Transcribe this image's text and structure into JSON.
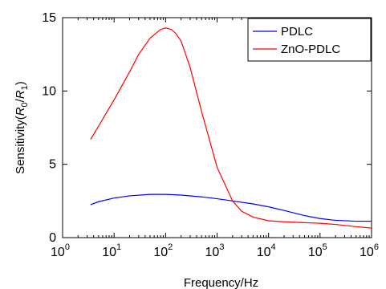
{
  "chart_data": {
    "type": "line",
    "xlabel": "Frequency/Hz",
    "ylabel": "Sensitivity(R0/R1)",
    "ylabel_parts": {
      "prefix": "Sensitivity(",
      "r0": "R",
      "r0_sub": "0",
      "slash": "/",
      "r1": "R",
      "r1_sub": "1",
      "suffix": ")"
    },
    "x_scale": "log",
    "xlim": [
      1,
      1000000
    ],
    "ylim": [
      0,
      15
    ],
    "x_ticks": [
      {
        "base": "10",
        "exp": "0",
        "value": 1
      },
      {
        "base": "10",
        "exp": "1",
        "value": 10
      },
      {
        "base": "10",
        "exp": "2",
        "value": 100
      },
      {
        "base": "10",
        "exp": "3",
        "value": 1000
      },
      {
        "base": "10",
        "exp": "4",
        "value": 10000
      },
      {
        "base": "10",
        "exp": "5",
        "value": 100000
      },
      {
        "base": "10",
        "exp": "6",
        "value": 1000000
      }
    ],
    "y_ticks": [
      {
        "label": "0",
        "value": 0
      },
      {
        "label": "5",
        "value": 5
      },
      {
        "label": "10",
        "value": 10
      },
      {
        "label": "15",
        "value": 15
      }
    ],
    "grid": false,
    "legend_position": "top-right",
    "series": [
      {
        "name": "PDLC",
        "color": "#0000ff",
        "x": [
          3.5,
          5,
          10,
          20,
          50,
          100,
          200,
          500,
          1000,
          2000,
          5000,
          10000,
          20000,
          50000,
          100000,
          200000,
          500000,
          1000000
        ],
        "y": [
          2.25,
          2.45,
          2.7,
          2.85,
          2.95,
          2.95,
          2.9,
          2.78,
          2.65,
          2.5,
          2.3,
          2.1,
          1.85,
          1.5,
          1.3,
          1.18,
          1.12,
          1.12
        ]
      },
      {
        "name": "ZnO-PDLC",
        "color": "#ff0000",
        "x": [
          3.5,
          5,
          10,
          20,
          30,
          50,
          80,
          100,
          130,
          160,
          200,
          300,
          500,
          1000,
          2000,
          3000,
          5000,
          10000,
          20000,
          50000,
          100000,
          200000,
          500000,
          1000000
        ],
        "y": [
          6.7,
          7.6,
          9.4,
          11.3,
          12.5,
          13.6,
          14.2,
          14.3,
          14.2,
          13.9,
          13.4,
          11.6,
          8.6,
          4.8,
          2.5,
          1.8,
          1.4,
          1.15,
          1.08,
          1.02,
          0.98,
          0.9,
          0.75,
          0.65
        ]
      }
    ]
  }
}
